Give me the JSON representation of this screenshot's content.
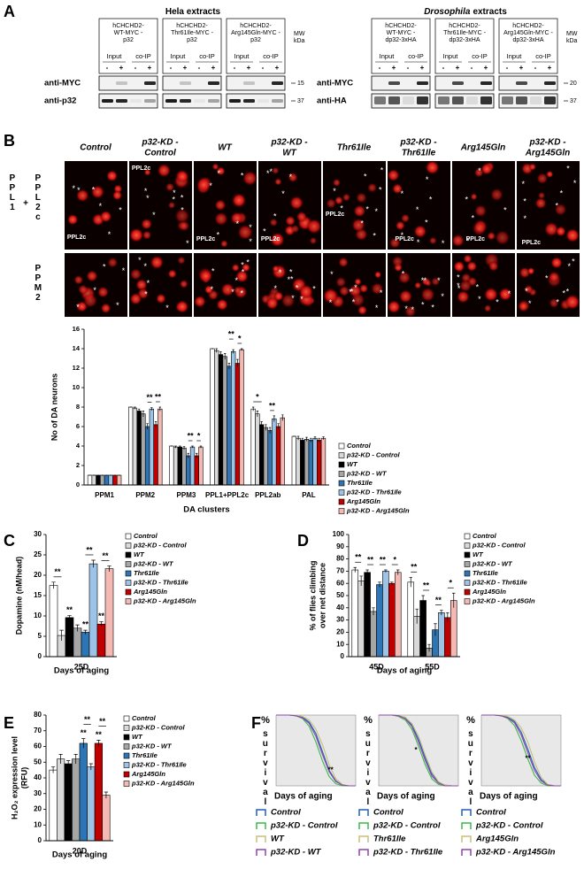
{
  "figure": {
    "panel_labels": [
      "A",
      "B",
      "C",
      "D",
      "E",
      "F"
    ],
    "panel_a": {
      "groups": [
        {
          "title": [
            "Hela extracts"
          ],
          "blots": [
            {
              "header": [
                "hCHCHD2-",
                "WT-MYC -",
                "p32"
              ]
            },
            {
              "header": [
                "hCHCHD2-",
                "Thr61Ile-MYC -",
                "p32"
              ]
            },
            {
              "header": [
                "hCHCHD2-",
                "Arg145Gln-MYC -",
                "p32"
              ]
            }
          ],
          "antibodies": [
            "anti-MYC",
            "anti-p32"
          ],
          "mw": [
            "15",
            "37"
          ]
        },
        {
          "title": [
            "Drosophila",
            "extracts"
          ],
          "blots": [
            {
              "header": [
                "hCHCHD2-",
                "WT-MYC -",
                "dp32-3xHA"
              ]
            },
            {
              "header": [
                "hCHCHD2-",
                "Thr61Ile-MYC -",
                "dp32-3xHA"
              ]
            },
            {
              "header": [
                "hCHCHD2-",
                "Arg145Gln-MYC -",
                "dp32-3xHA"
              ]
            }
          ],
          "antibodies": [
            "anti-MYC",
            "anti-HA"
          ],
          "mw": [
            "20",
            "37"
          ]
        }
      ],
      "lane_groups": [
        "Input",
        "co-IP"
      ],
      "lane_signs": [
        "-",
        "+",
        "-",
        "+"
      ],
      "mw_header": [
        "MW",
        "kDa"
      ]
    },
    "panel_b": {
      "columns": [
        [
          "Control"
        ],
        [
          "p32-KD -",
          "Control"
        ],
        [
          "WT"
        ],
        [
          "p32-KD -",
          "WT"
        ],
        [
          "Thr61Ile"
        ],
        [
          "p32-KD -",
          "Thr61Ile"
        ],
        [
          "Arg145Gln"
        ],
        [
          "p32-KD -",
          "Arg145Gln"
        ]
      ],
      "rows": [
        [
          "PPL1",
          "+",
          "PPL2c"
        ],
        [
          "PPM2"
        ]
      ],
      "region_label": "PPL2c",
      "cell_mark": "*"
    }
  },
  "chart_data": [
    {
      "type": "bar",
      "ylabel": [
        "No of DA neurons"
      ],
      "xlabel": "DA clusters",
      "categories": [
        "PPM1",
        "PPM2",
        "PPM3",
        "PPL1+PPL2c",
        "PPL2ab",
        "PAL"
      ],
      "ylim": [
        0,
        16
      ],
      "yticks": [
        0,
        2,
        4,
        6,
        8,
        10,
        12,
        14,
        16
      ],
      "series": [
        {
          "name": "Control",
          "color": "#ffffff",
          "values": [
            1,
            8,
            4,
            14,
            7.8,
            5
          ],
          "errors": [
            0,
            0,
            0,
            0,
            0.2,
            0
          ]
        },
        {
          "name": "p32-KD - Control",
          "color": "#d9d9d9",
          "values": [
            1,
            7.9,
            3.9,
            13.8,
            7.3,
            4.8
          ],
          "errors": [
            0,
            0.1,
            0.1,
            0.2,
            0.3,
            0.2
          ]
        },
        {
          "name": "WT",
          "color": "#000000",
          "values": [
            1,
            7.6,
            3.9,
            13.4,
            6.2,
            4.6
          ],
          "errors": [
            0,
            0.2,
            0.1,
            0.3,
            0.3,
            0.2
          ]
        },
        {
          "name": "p32-KD - WT",
          "color": "#a6a6a6",
          "values": [
            1,
            7.3,
            3.8,
            13.2,
            5.9,
            4.7
          ],
          "errors": [
            0,
            0.3,
            0.15,
            0.3,
            0.3,
            0.2
          ]
        },
        {
          "name": "Thr61Ile",
          "color": "#2e75b6",
          "values": [
            1,
            6,
            3,
            12.2,
            5.6,
            4.6
          ],
          "errors": [
            0,
            0.3,
            0.25,
            0.3,
            0.3,
            0.2
          ]
        },
        {
          "name": "p32-KD - Thr61Ile",
          "color": "#9dc3e6",
          "values": [
            1,
            7.8,
            3.9,
            13.7,
            6.8,
            4.8
          ],
          "errors": [
            0,
            0.15,
            0.1,
            0.2,
            0.3,
            0.15
          ]
        },
        {
          "name": "Arg145Gln",
          "color": "#c00000",
          "values": [
            1,
            6.2,
            3,
            12.5,
            6,
            4.6
          ],
          "errors": [
            0,
            0.3,
            0.25,
            0.4,
            0.3,
            0.2
          ]
        },
        {
          "name": "p32-KD - Arg145Gln",
          "color": "#f4b9b2",
          "values": [
            1,
            7.8,
            3.9,
            13.9,
            6.9,
            4.8
          ],
          "errors": [
            0,
            0.2,
            0.1,
            0.1,
            0.3,
            0.15
          ]
        }
      ],
      "annotations": [
        "**",
        "**",
        "**",
        "*",
        "**",
        "*",
        "*",
        "**"
      ]
    },
    {
      "type": "bar",
      "ylabel": [
        "Dopamine (nM/head)"
      ],
      "xlabel": "Days of aging",
      "categories": [
        "25D"
      ],
      "ylim": [
        0,
        30
      ],
      "yticks": [
        0,
        5,
        10,
        15,
        20,
        25,
        30
      ],
      "series": [
        {
          "name": "Control",
          "color": "#ffffff",
          "values": [
            17.5
          ],
          "errors": [
            0.8
          ]
        },
        {
          "name": "p32-KD - Control",
          "color": "#d9d9d9",
          "values": [
            5.2
          ],
          "errors": [
            1.3
          ]
        },
        {
          "name": "WT",
          "color": "#000000",
          "values": [
            9.6
          ],
          "errors": [
            0.5
          ]
        },
        {
          "name": "p32-KD - WT",
          "color": "#a6a6a6",
          "values": [
            7
          ],
          "errors": [
            0.8
          ]
        },
        {
          "name": "Thr61Ile",
          "color": "#2e75b6",
          "values": [
            6
          ],
          "errors": [
            0.5
          ]
        },
        {
          "name": "p32-KD - Thr61Ile",
          "color": "#9dc3e6",
          "values": [
            22.8
          ],
          "errors": [
            0.9
          ]
        },
        {
          "name": "Arg145Gln",
          "color": "#c00000",
          "values": [
            8
          ],
          "errors": [
            0.6
          ]
        },
        {
          "name": "p32-KD - Arg145Gln",
          "color": "#f4b9b2",
          "values": [
            21.6
          ],
          "errors": [
            0.7
          ]
        }
      ],
      "annotations": [
        "**",
        "**",
        "**",
        "**",
        "**",
        "**"
      ]
    },
    {
      "type": "bar",
      "ylabel": [
        "% of flies climbing",
        "over net distance"
      ],
      "xlabel": "Days of aging",
      "categories": [
        "45D",
        "55D"
      ],
      "ylim": [
        0,
        100
      ],
      "yticks": [
        0,
        10,
        20,
        30,
        40,
        50,
        60,
        70,
        80,
        90,
        100
      ],
      "series": [
        {
          "name": "Control",
          "color": "#ffffff",
          "values": [
            71,
            61
          ],
          "errors": [
            2,
            4
          ]
        },
        {
          "name": "p32-KD - Control",
          "color": "#d9d9d9",
          "values": [
            62,
            33
          ],
          "errors": [
            4,
            6
          ]
        },
        {
          "name": "WT",
          "color": "#000000",
          "values": [
            69,
            46
          ],
          "errors": [
            2,
            4
          ]
        },
        {
          "name": "p32-KD - WT",
          "color": "#a6a6a6",
          "values": [
            37,
            7
          ],
          "errors": [
            3,
            3
          ]
        },
        {
          "name": "Thr61Ile",
          "color": "#2e75b6",
          "values": [
            59,
            22
          ],
          "errors": [
            2,
            5
          ]
        },
        {
          "name": "p32-KD - Thr61Ile",
          "color": "#9dc3e6",
          "values": [
            70,
            36
          ],
          "errors": [
            1,
            2
          ]
        },
        {
          "name": "Arg145Gln",
          "color": "#c00000",
          "values": [
            60,
            32
          ],
          "errors": [
            1,
            4
          ]
        },
        {
          "name": "p32-KD - Arg145Gln",
          "color": "#f4b9b2",
          "values": [
            69,
            46
          ],
          "errors": [
            2,
            6
          ]
        }
      ],
      "annotations": [
        "**",
        "**",
        "**",
        "*",
        "**",
        "**",
        "**",
        "*"
      ]
    },
    {
      "type": "bar",
      "ylabel": [
        "H₂O₂ expression level",
        "(RFU)"
      ],
      "xlabel": "Days of aging",
      "categories": [
        "20D"
      ],
      "ylim": [
        0,
        80
      ],
      "yticks": [
        0,
        10,
        20,
        30,
        40,
        50,
        60,
        70,
        80
      ],
      "series": [
        {
          "name": "Control",
          "color": "#ffffff",
          "values": [
            45
          ],
          "errors": [
            2
          ]
        },
        {
          "name": "p32-KD - Control",
          "color": "#d9d9d9",
          "values": [
            52
          ],
          "errors": [
            3
          ]
        },
        {
          "name": "WT",
          "color": "#000000",
          "values": [
            49
          ],
          "errors": [
            2
          ]
        },
        {
          "name": "p32-KD - WT",
          "color": "#a6a6a6",
          "values": [
            52
          ],
          "errors": [
            3
          ]
        },
        {
          "name": "Thr61Ile",
          "color": "#2e75b6",
          "values": [
            62
          ],
          "errors": [
            3
          ]
        },
        {
          "name": "p32-KD - Thr61Ile",
          "color": "#9dc3e6",
          "values": [
            47
          ],
          "errors": [
            2
          ]
        },
        {
          "name": "Arg145Gln",
          "color": "#c00000",
          "values": [
            62
          ],
          "errors": [
            2
          ]
        },
        {
          "name": "p32-KD - Arg145Gln",
          "color": "#f4b9b2",
          "values": [
            29
          ],
          "errors": [
            2
          ]
        }
      ],
      "annotations": [
        "**",
        "**",
        "**",
        "**"
      ]
    },
    {
      "type": "line",
      "ylabel": [
        "%",
        "survival"
      ],
      "xlabel": "Days of aging",
      "xlim": [
        0,
        120
      ],
      "ylim": [
        0,
        100
      ],
      "x": [
        0,
        10,
        20,
        30,
        40,
        50,
        60,
        70,
        80,
        90,
        100,
        110,
        120
      ],
      "series": [
        {
          "name": "Control",
          "color": "#1f5fbf",
          "values": [
            100,
            100,
            100,
            99,
            97,
            90,
            74,
            48,
            22,
            7,
            1,
            0,
            0
          ]
        },
        {
          "name": "p32-KD - Control",
          "color": "#3cb84a",
          "values": [
            100,
            100,
            100,
            99,
            95,
            84,
            62,
            35,
            13,
            3,
            0,
            0,
            0
          ]
        },
        {
          "name": "WT",
          "color": "#c8bf7a",
          "values": [
            100,
            100,
            100,
            100,
            98,
            93,
            80,
            58,
            30,
            10,
            2,
            0,
            0
          ]
        },
        {
          "name": "p32-KD - WT",
          "color": "#8e44ad",
          "values": [
            100,
            100,
            100,
            99,
            96,
            88,
            70,
            44,
            20,
            6,
            1,
            0,
            0
          ]
        }
      ],
      "annotations": [
        "**"
      ]
    },
    {
      "type": "line",
      "ylabel": [
        "%",
        "survival"
      ],
      "xlabel": "Days of aging",
      "xlim": [
        0,
        120
      ],
      "ylim": [
        0,
        100
      ],
      "x": [
        0,
        10,
        20,
        30,
        40,
        50,
        60,
        70,
        80,
        90,
        100,
        110,
        120
      ],
      "series": [
        {
          "name": "Control",
          "color": "#1f5fbf",
          "values": [
            100,
            100,
            100,
            99,
            96,
            86,
            66,
            40,
            17,
            5,
            1,
            0,
            0
          ]
        },
        {
          "name": "p32-KD - Control",
          "color": "#3cb84a",
          "values": [
            100,
            100,
            100,
            98,
            93,
            80,
            56,
            30,
            10,
            2,
            0,
            0,
            0
          ]
        },
        {
          "name": "Thr61Ile",
          "color": "#c8bf7a",
          "values": [
            100,
            100,
            100,
            99,
            97,
            88,
            70,
            44,
            20,
            6,
            1,
            0,
            0
          ]
        },
        {
          "name": "p32-KD - Thr61Ile",
          "color": "#8e44ad",
          "values": [
            100,
            100,
            100,
            99,
            95,
            84,
            62,
            36,
            14,
            4,
            0,
            0,
            0
          ]
        }
      ],
      "annotations": [
        "*"
      ]
    },
    {
      "type": "line",
      "ylabel": [
        "%",
        "survival"
      ],
      "xlabel": "Days of aging",
      "xlim": [
        0,
        120
      ],
      "ylim": [
        0,
        100
      ],
      "x": [
        0,
        10,
        20,
        30,
        40,
        50,
        60,
        70,
        80,
        90,
        100,
        110,
        120
      ],
      "series": [
        {
          "name": "Control",
          "color": "#1f5fbf",
          "values": [
            100,
            100,
            100,
            99,
            97,
            91,
            76,
            52,
            26,
            9,
            2,
            0,
            0
          ]
        },
        {
          "name": "p32-KD - Control",
          "color": "#3cb84a",
          "values": [
            100,
            100,
            100,
            99,
            95,
            85,
            64,
            38,
            15,
            4,
            0,
            0,
            0
          ]
        },
        {
          "name": "Arg145Gln",
          "color": "#c8bf7a",
          "values": [
            100,
            100,
            100,
            100,
            98,
            93,
            82,
            62,
            34,
            12,
            2,
            0,
            0
          ]
        },
        {
          "name": "p32-KD - Arg145Gln",
          "color": "#8e44ad",
          "values": [
            100,
            100,
            100,
            99,
            96,
            89,
            72,
            47,
            22,
            7,
            1,
            0,
            0
          ]
        }
      ],
      "annotations": [
        "**"
      ]
    }
  ]
}
